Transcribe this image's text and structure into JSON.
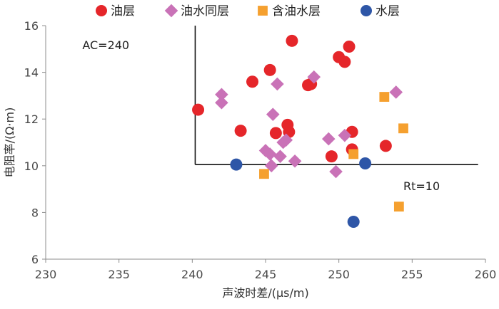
{
  "chart_data": {
    "type": "scatter",
    "xlabel": "声波时差/(μs/m)",
    "ylabel": "电阻率/(Ω·m)",
    "xlim": [
      230,
      260
    ],
    "ylim": [
      6,
      16
    ],
    "xticks": [
      230,
      235,
      240,
      245,
      250,
      255,
      260
    ],
    "yticks": [
      6,
      8,
      10,
      12,
      14,
      16
    ],
    "grid": false,
    "legend": "top",
    "series": [
      {
        "name": "油层",
        "marker": "circle",
        "color": "#E5262A",
        "points": [
          [
            240.4,
            12.4
          ],
          [
            243.3,
            11.5
          ],
          [
            244.1,
            13.6
          ],
          [
            245.3,
            14.1
          ],
          [
            245.7,
            11.4
          ],
          [
            246.5,
            11.75
          ],
          [
            246.6,
            11.45
          ],
          [
            246.8,
            15.35
          ],
          [
            247.9,
            13.45
          ],
          [
            248.1,
            13.5
          ],
          [
            249.5,
            10.4
          ],
          [
            250.0,
            14.65
          ],
          [
            250.4,
            14.45
          ],
          [
            250.7,
            15.1
          ],
          [
            250.9,
            11.45
          ],
          [
            250.9,
            10.7
          ],
          [
            253.2,
            10.85
          ]
        ]
      },
      {
        "name": "油水同层",
        "marker": "diamond",
        "color": "#C972B7",
        "points": [
          [
            242.0,
            13.05
          ],
          [
            242.0,
            12.7
          ],
          [
            245.0,
            10.65
          ],
          [
            245.3,
            10.5
          ],
          [
            245.4,
            10.0
          ],
          [
            245.5,
            12.2
          ],
          [
            245.8,
            13.5
          ],
          [
            246.0,
            10.4
          ],
          [
            246.2,
            11.0
          ],
          [
            246.4,
            11.1
          ],
          [
            247.0,
            10.2
          ],
          [
            248.3,
            13.8
          ],
          [
            249.3,
            11.15
          ],
          [
            249.8,
            9.75
          ],
          [
            250.4,
            11.3
          ],
          [
            253.9,
            13.15
          ]
        ]
      },
      {
        "name": "含油水层",
        "marker": "square",
        "color": "#F5A02F",
        "points": [
          [
            244.9,
            9.65
          ],
          [
            251.0,
            10.5
          ],
          [
            253.1,
            12.95
          ],
          [
            254.1,
            8.25
          ],
          [
            254.4,
            11.6
          ]
        ]
      },
      {
        "name": "水层",
        "marker": "circle",
        "color": "#2E56A7",
        "points": [
          [
            243.0,
            10.05
          ],
          [
            251.0,
            7.6
          ],
          [
            251.8,
            10.1
          ]
        ]
      }
    ],
    "cutoff_lines": {
      "vertical_x": 240.2,
      "vertical_y_range": [
        10.05,
        16.0
      ],
      "horizontal_y": 10.05,
      "horizontal_x_range": [
        240.2,
        259.5
      ]
    },
    "annotations": [
      {
        "text": "AC=240",
        "x": 232.5,
        "y": 15.0
      },
      {
        "text": "Rt=10",
        "x": 254.4,
        "y": 8.95
      }
    ]
  }
}
